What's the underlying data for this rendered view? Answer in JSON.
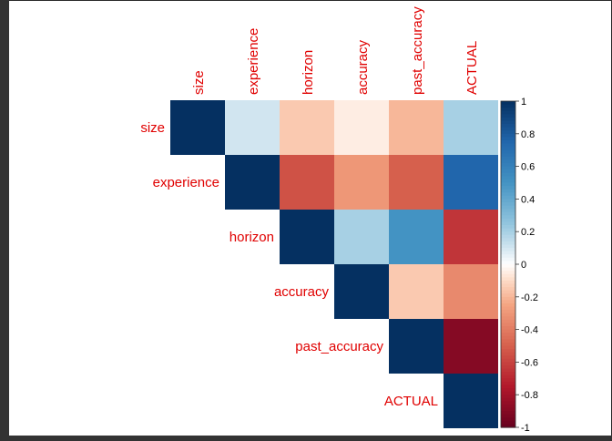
{
  "chart_data": {
    "type": "heatmap",
    "variables": [
      "size",
      "experience",
      "horizon",
      "accuracy",
      "past_accuracy",
      "ACTUAL"
    ],
    "matrix": [
      [
        1.0,
        0.1,
        -0.15,
        -0.05,
        -0.2,
        0.2
      ],
      [
        null,
        1.0,
        -0.55,
        -0.3,
        -0.5,
        0.75
      ],
      [
        null,
        null,
        1.0,
        0.2,
        0.5,
        -0.65
      ],
      [
        null,
        null,
        null,
        1.0,
        -0.15,
        -0.35
      ],
      [
        null,
        null,
        null,
        null,
        1.0,
        -0.9
      ],
      [
        null,
        null,
        null,
        null,
        null,
        1.0
      ]
    ],
    "layout": "upper-triangle",
    "label_color": "#e00000",
    "colorbar": {
      "ticks": [
        "1",
        "0.8",
        "0.6",
        "0.4",
        "0.2",
        "0",
        "-0.2",
        "-0.4",
        "-0.6",
        "-0.8",
        "-1"
      ],
      "range": [
        -1,
        1
      ]
    },
    "colorscale": [
      [
        -1.0,
        "#67001f"
      ],
      [
        -0.75,
        "#b2182b"
      ],
      [
        -0.5,
        "#d6604d"
      ],
      [
        -0.25,
        "#f4a582"
      ],
      [
        -0.1,
        "#fddbc7"
      ],
      [
        0.0,
        "#ffffff"
      ],
      [
        0.1,
        "#d1e5f0"
      ],
      [
        0.25,
        "#92c5de"
      ],
      [
        0.5,
        "#4393c3"
      ],
      [
        0.75,
        "#2166ac"
      ],
      [
        1.0,
        "#053061"
      ]
    ]
  }
}
